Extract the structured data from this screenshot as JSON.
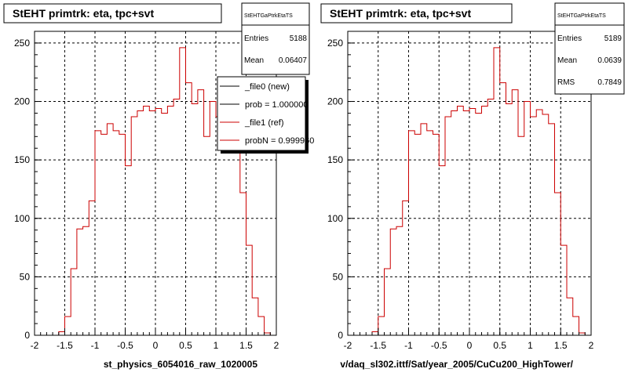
{
  "footer_text": "",
  "pads": [
    {
      "title": "StEHT primtrk: eta, tpc+svt",
      "stats": {
        "name": "StEHTGaPtrkEtaTS",
        "entries_label": "Entries",
        "entries_value": "5188",
        "mean_label": "Mean",
        "mean_value": "0.06407"
      },
      "legend": [
        {
          "label": "_file0 (new)",
          "color": "#000000"
        },
        {
          "label": "prob = 1.000000",
          "color": "#000000"
        },
        {
          "label": "_file1 (ref)",
          "color": "#cc0000"
        },
        {
          "label": "probN = 0.999960",
          "color": "#cc0000"
        }
      ],
      "xlabel": "st_physics_6054016_raw_1020005"
    },
    {
      "title": "StEHT primtrk: eta, tpc+svt",
      "stats": {
        "name": "StEHTGaPtrkEtaTS",
        "entries_label": "Entries",
        "entries_value": "5189",
        "mean_label": "Mean",
        "mean_value": "0.0639",
        "rms_label": "RMS",
        "rms_value": "0.7849"
      },
      "xlabel": "v/daq_sl302.ittf/Sat/year_2005/CuCu200_HighTower/"
    }
  ],
  "chart_data": [
    {
      "type": "histogram",
      "title": "StEHT primtrk: eta, tpc+svt",
      "xlabel": "st_physics_6054016_raw_1020005",
      "ylabel": "",
      "xlim": [
        -2,
        2
      ],
      "ylim": [
        0,
        260
      ],
      "x_ticks": [
        "-2",
        "-1.5",
        "-1",
        "-0.5",
        "0",
        "0.5",
        "1",
        "1.5",
        "2"
      ],
      "y_ticks": [
        "0",
        "50",
        "100",
        "150",
        "200",
        "250"
      ],
      "bin_edges_start": -2,
      "bin_width": 0.1,
      "grid": true,
      "series": [
        {
          "name": "_file1 (ref)",
          "color": "#cc0000",
          "values": [
            0,
            0,
            0,
            0,
            3,
            16,
            57,
            91,
            93,
            115,
            175,
            172,
            181,
            175,
            172,
            145,
            187,
            192,
            196,
            192,
            194,
            190,
            196,
            202,
            246,
            216,
            198,
            210,
            170,
            200,
            187,
            193,
            189,
            181,
            122,
            77,
            32,
            16,
            2,
            0
          ]
        }
      ]
    },
    {
      "type": "histogram",
      "title": "StEHT primtrk: eta, tpc+svt",
      "xlabel": "v/daq_sl302.ittf/Sat/year_2005/CuCu200_HighTower/",
      "ylabel": "",
      "xlim": [
        -2,
        2
      ],
      "ylim": [
        0,
        260
      ],
      "x_ticks": [
        "-2",
        "-1.5",
        "-1",
        "-0.5",
        "0",
        "0.5",
        "1",
        "1.5",
        "2"
      ],
      "y_ticks": [
        "0",
        "50",
        "100",
        "150",
        "200",
        "250"
      ],
      "bin_edges_start": -2,
      "bin_width": 0.1,
      "grid": true,
      "series": [
        {
          "color": "#cc0000",
          "values": [
            0,
            0,
            0,
            0,
            3,
            16,
            57,
            91,
            93,
            115,
            175,
            172,
            181,
            175,
            172,
            145,
            187,
            192,
            196,
            192,
            194,
            190,
            196,
            202,
            246,
            216,
            198,
            210,
            170,
            200,
            187,
            193,
            189,
            181,
            122,
            77,
            32,
            16,
            2,
            0
          ]
        }
      ]
    }
  ]
}
